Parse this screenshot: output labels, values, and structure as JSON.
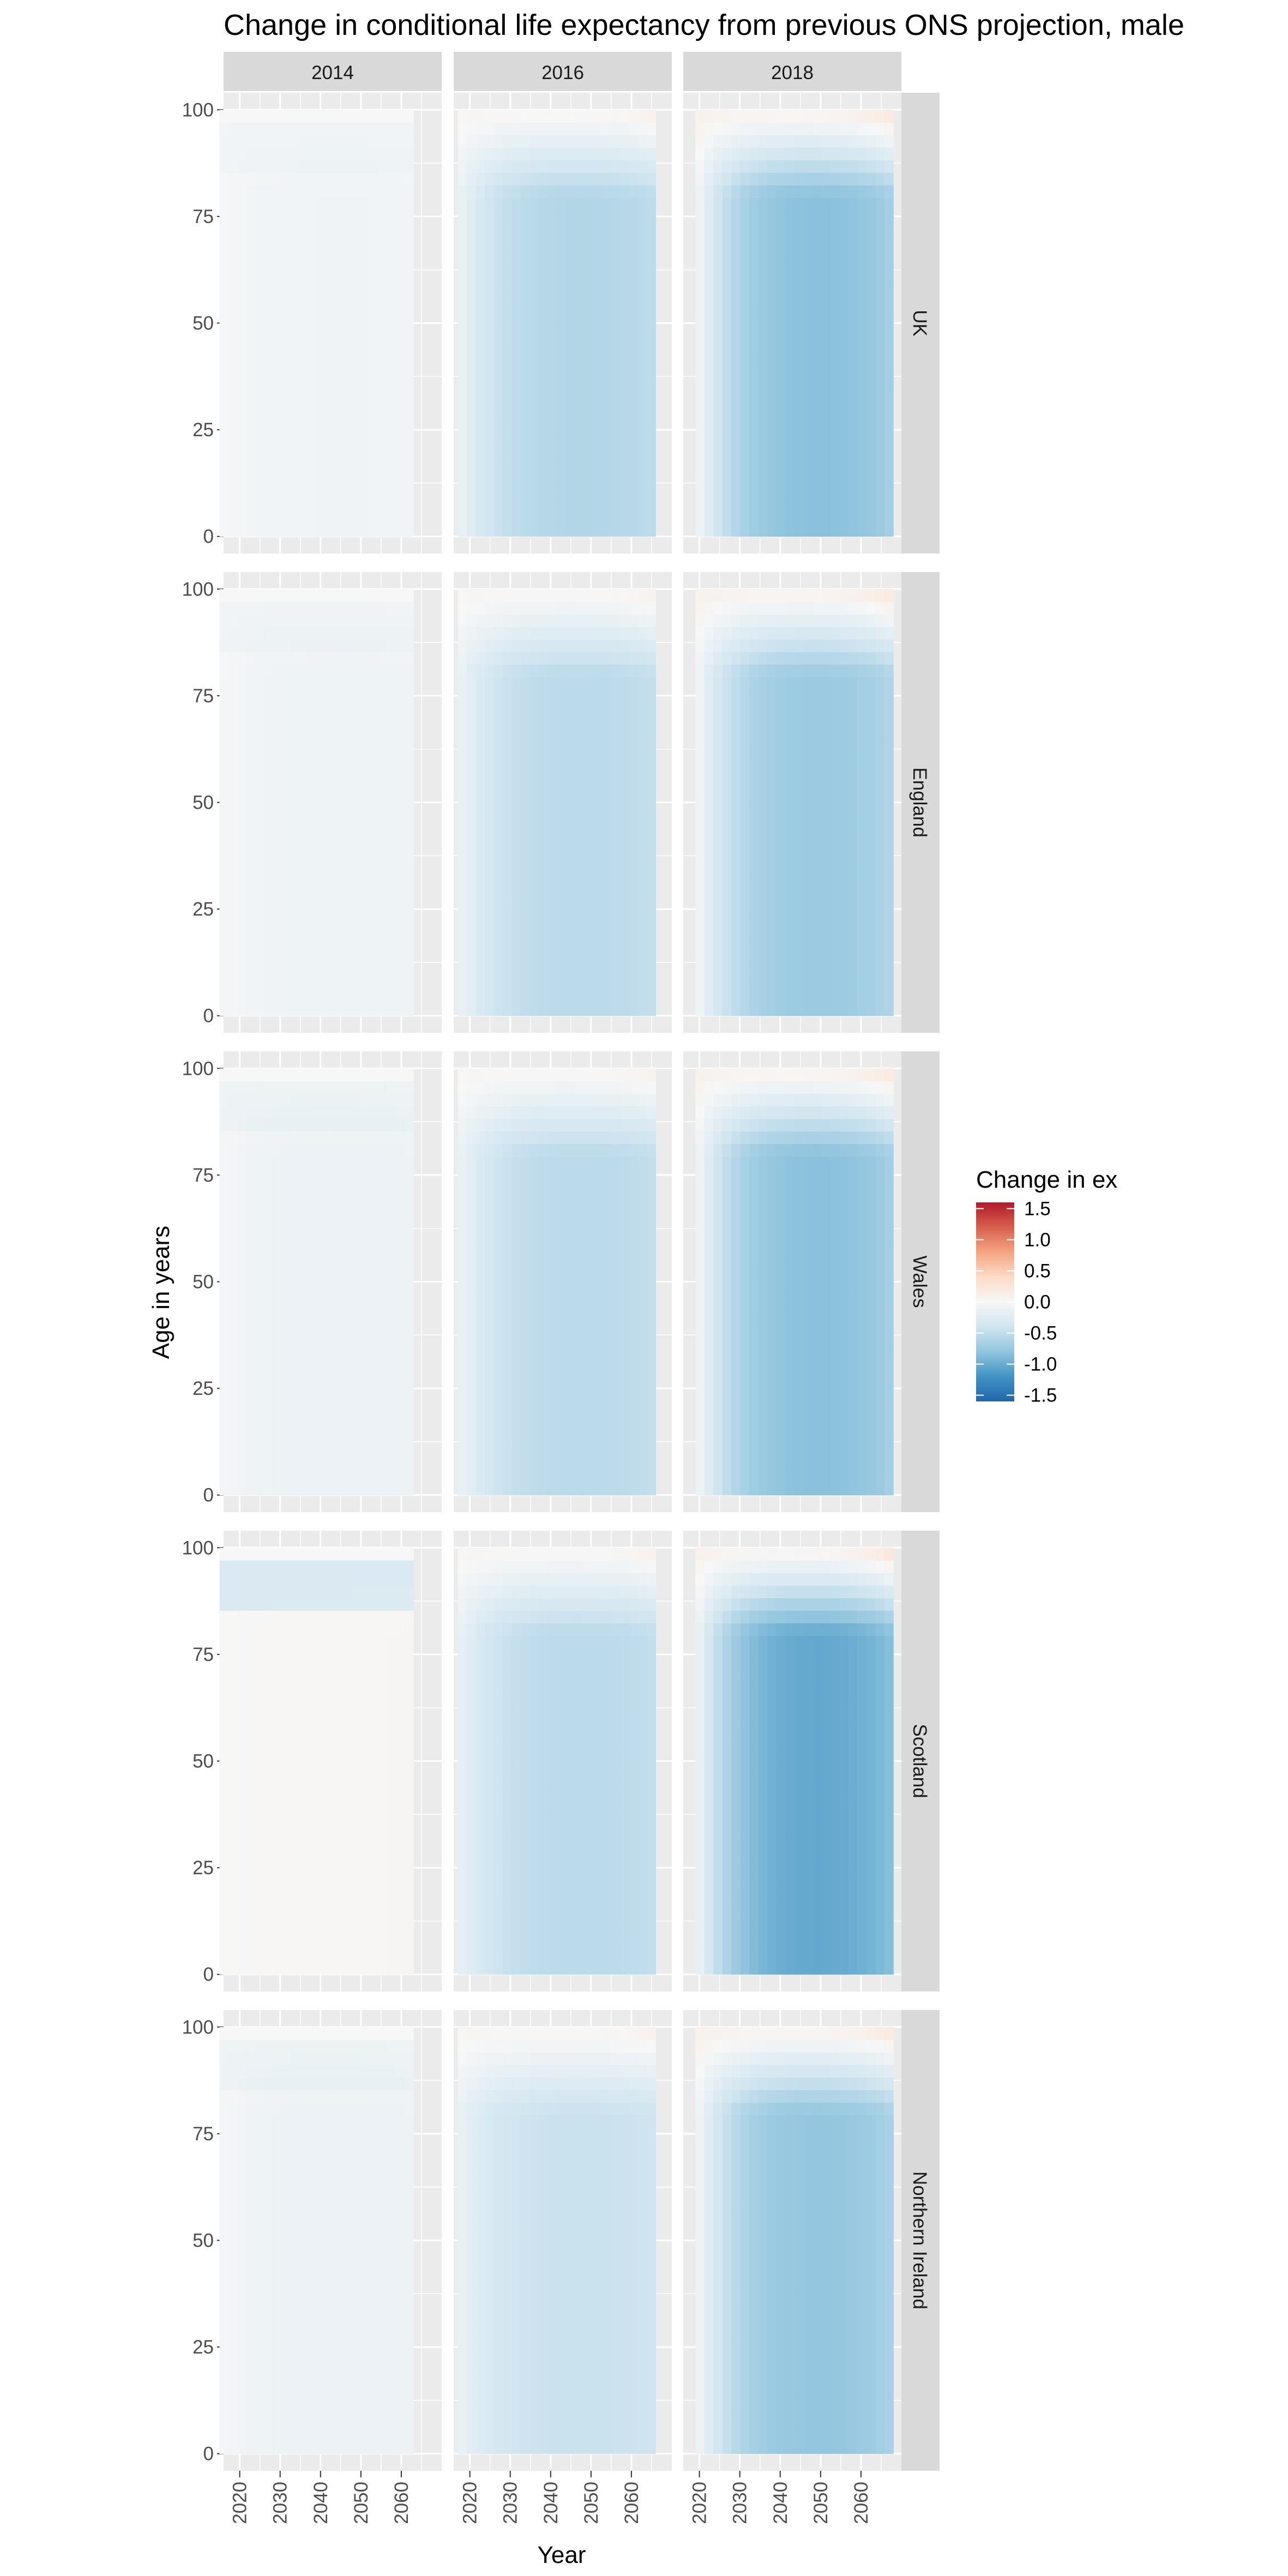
{
  "chart_data": {
    "type": "heatmap",
    "title": "Change in conditional life expectancy from previous ONS projection, male",
    "xlabel": "Year",
    "ylabel": "Age in years",
    "columns": [
      "2014",
      "2016",
      "2018"
    ],
    "rows": [
      "UK",
      "England",
      "Wales",
      "Scotland",
      "Northern Ireland"
    ],
    "x_ticks": [
      "2020",
      "2030",
      "2040",
      "2050",
      "2060"
    ],
    "y_ticks": [
      "0",
      "25",
      "50",
      "75",
      "100"
    ],
    "x_range": {
      "2014": [
        2015,
        2063
      ],
      "2016": [
        2017,
        2066
      ],
      "2018": [
        2019,
        2068
      ]
    },
    "xlim": [
      2016,
      2070
    ],
    "ylim": [
      -4,
      104
    ],
    "age_range": [
      0,
      100
    ],
    "legend": {
      "title": "Change in ex",
      "labels": [
        "1.5",
        "1.0",
        "0.5",
        "0.0",
        "-0.5",
        "-1.0",
        "-1.5"
      ],
      "values": [
        1.5,
        1.0,
        0.5,
        0.0,
        -0.5,
        -1.0,
        -1.5
      ],
      "limits": [
        -1.6,
        1.6
      ],
      "colors": [
        "#2166ac",
        "#4393c3",
        "#92c5de",
        "#d1e5f0",
        "#f7f7f7",
        "#fddbc7",
        "#f4a582",
        "#d6604d",
        "#b2182b"
      ],
      "position": "right"
    },
    "panel_values": {
      "2014": {
        "UK": {
          "base": -0.08,
          "late": -0.05,
          "young": -0.02,
          "old": 0.0,
          "band": -0.05
        },
        "England": {
          "base": -0.1,
          "late": -0.06,
          "young": -0.02,
          "old": 0.0,
          "band": -0.06
        },
        "Wales": {
          "base": -0.12,
          "late": -0.06,
          "young": -0.03,
          "old": 0.0,
          "band": -0.08
        },
        "Scotland": {
          "base": 0.02,
          "late": 0.03,
          "young": 0.0,
          "old": 0.0,
          "band": -0.3
        },
        "Northern Ireland": {
          "base": -0.12,
          "late": -0.06,
          "young": -0.03,
          "old": 0.0,
          "band": -0.08
        }
      },
      "2016": {
        "UK": {
          "base": -0.6,
          "late": -0.3,
          "young": -0.1,
          "old": 0.05,
          "band": 0.0
        },
        "England": {
          "base": -0.55,
          "late": -0.28,
          "young": -0.1,
          "old": 0.05,
          "band": 0.0
        },
        "Wales": {
          "base": -0.55,
          "late": -0.3,
          "young": -0.1,
          "old": 0.05,
          "band": 0.0
        },
        "Scotland": {
          "base": -0.55,
          "late": -0.32,
          "young": -0.12,
          "old": 0.05,
          "band": 0.0
        },
        "Northern Ireland": {
          "base": -0.45,
          "late": -0.25,
          "young": -0.12,
          "old": 0.05,
          "band": 0.0
        }
      },
      "2018": {
        "UK": {
          "base": -0.85,
          "late": -0.25,
          "young": -0.02,
          "old": 0.1,
          "band": 0.0
        },
        "England": {
          "base": -0.75,
          "late": -0.22,
          "young": -0.02,
          "old": 0.1,
          "band": 0.0
        },
        "Wales": {
          "base": -0.85,
          "late": -0.25,
          "young": -0.02,
          "old": 0.1,
          "band": 0.0
        },
        "Scotland": {
          "base": -1.05,
          "late": -0.3,
          "young": -0.05,
          "old": 0.1,
          "band": 0.0
        },
        "Northern Ireland": {
          "base": -0.8,
          "late": -0.25,
          "young": -0.02,
          "old": 0.1,
          "band": 0.0
        }
      }
    }
  }
}
